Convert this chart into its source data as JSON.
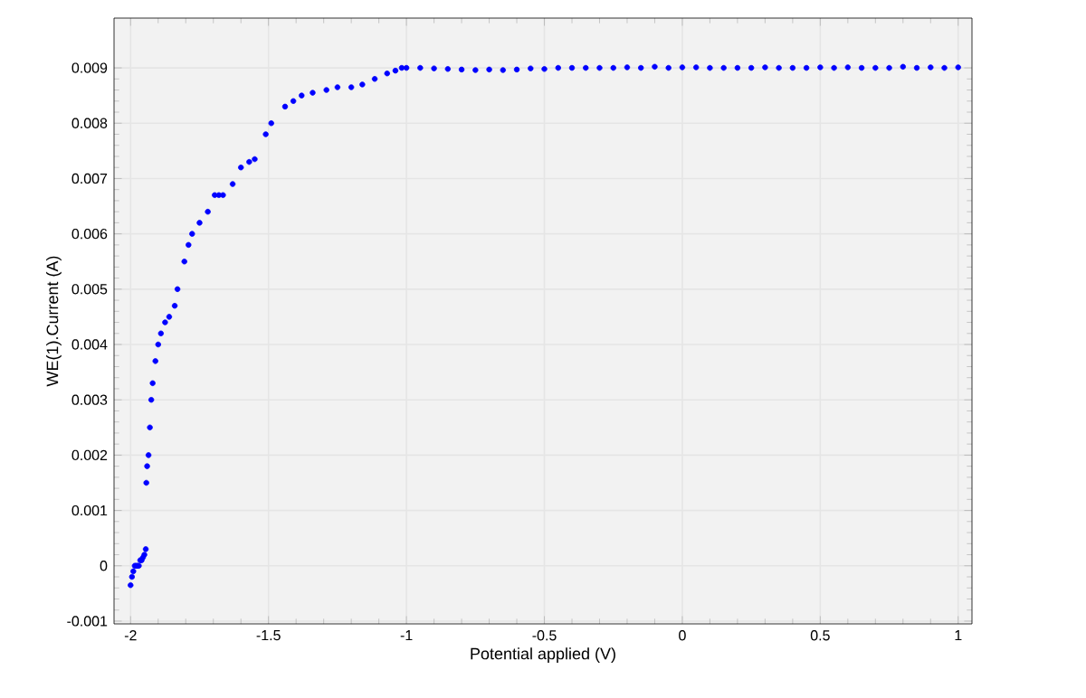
{
  "chart_data": {
    "type": "scatter",
    "xlabel": "Potential applied (V)",
    "ylabel": "WE(1).Current (A)",
    "xlim": [
      -2.06,
      1.05
    ],
    "ylim": [
      -0.00105,
      0.0099
    ],
    "xticks": [
      -2,
      -1.5,
      -1,
      -0.5,
      0,
      0.5,
      1
    ],
    "yticks": [
      -0.001,
      0,
      0.001,
      0.002,
      0.003,
      0.004,
      0.005,
      0.006,
      0.007,
      0.008,
      0.009
    ],
    "grid": true,
    "series": [
      {
        "color": "#0000ff",
        "x": [
          -2.0,
          -1.995,
          -1.99,
          -1.985,
          -1.98,
          -1.975,
          -1.97,
          -1.965,
          -1.96,
          -1.955,
          -1.95,
          -1.945,
          -1.943,
          -1.94,
          -1.935,
          -1.93,
          -1.925,
          -1.92,
          -1.91,
          -1.9,
          -1.89,
          -1.875,
          -1.86,
          -1.84,
          -1.83,
          -1.805,
          -1.79,
          -1.777,
          -1.75,
          -1.72,
          -1.695,
          -1.68,
          -1.665,
          -1.63,
          -1.6,
          -1.57,
          -1.55,
          -1.51,
          -1.49,
          -1.44,
          -1.41,
          -1.38,
          -1.34,
          -1.29,
          -1.25,
          -1.2,
          -1.16,
          -1.115,
          -1.07,
          -1.04,
          -1.017,
          -1.0,
          -0.95,
          -0.9,
          -0.85,
          -0.8,
          -0.75,
          -0.7,
          -0.65,
          -0.6,
          -0.55,
          -0.5,
          -0.45,
          -0.4,
          -0.35,
          -0.3,
          -0.25,
          -0.2,
          -0.15,
          -0.1,
          -0.05,
          0.0,
          0.05,
          0.1,
          0.15,
          0.2,
          0.25,
          0.3,
          0.35,
          0.4,
          0.45,
          0.5,
          0.55,
          0.6,
          0.65,
          0.7,
          0.75,
          0.8,
          0.85,
          0.9,
          0.95,
          1.0
        ],
        "values": [
          -0.00035,
          -0.0002,
          -0.0001,
          0.0,
          0.0,
          0.0,
          0.0,
          0.0001,
          0.0001,
          0.00015,
          0.0002,
          0.0003,
          0.0015,
          0.0018,
          0.002,
          0.0025,
          0.003,
          0.0033,
          0.0037,
          0.004,
          0.0042,
          0.0044,
          0.0045,
          0.0047,
          0.005,
          0.0055,
          0.0058,
          0.006,
          0.0062,
          0.0064,
          0.0067,
          0.0067,
          0.0067,
          0.0069,
          0.0072,
          0.0073,
          0.00735,
          0.0078,
          0.008,
          0.0083,
          0.0084,
          0.0085,
          0.00855,
          0.0086,
          0.00865,
          0.00865,
          0.0087,
          0.0088,
          0.0089,
          0.00895,
          0.009,
          0.009,
          0.009,
          0.00899,
          0.00898,
          0.00897,
          0.00896,
          0.00897,
          0.00896,
          0.00897,
          0.00899,
          0.00898,
          0.009,
          0.009,
          0.009,
          0.009,
          0.009,
          0.00901,
          0.009,
          0.00902,
          0.009,
          0.00901,
          0.00901,
          0.009,
          0.009,
          0.009,
          0.009,
          0.00901,
          0.009,
          0.009,
          0.009,
          0.00901,
          0.009,
          0.00901,
          0.009,
          0.009,
          0.009,
          0.00902,
          0.009,
          0.00901,
          0.009,
          0.00901
        ]
      }
    ]
  }
}
